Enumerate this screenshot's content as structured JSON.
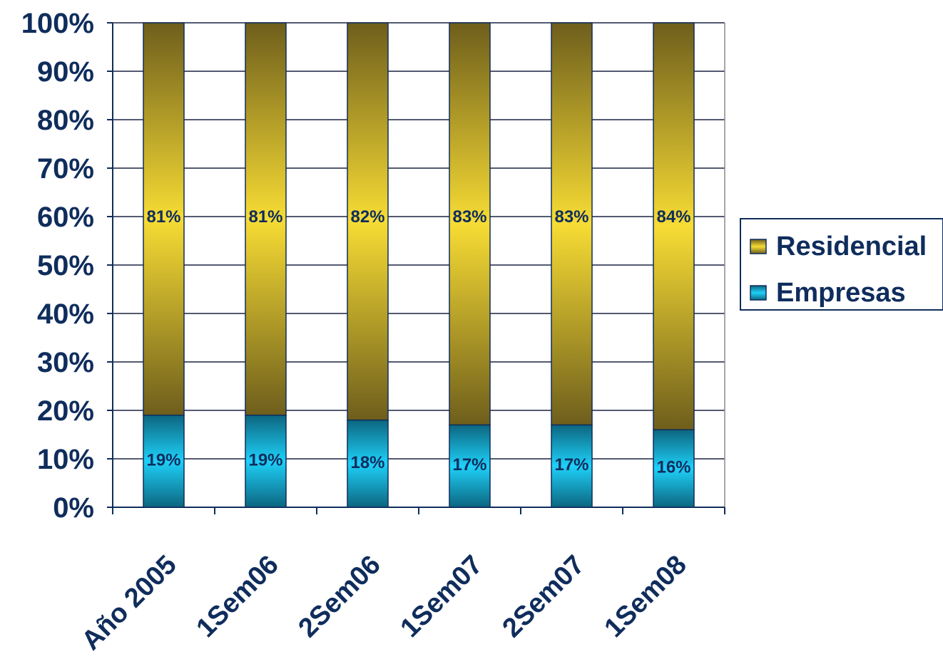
{
  "chart_data": {
    "type": "bar",
    "stacked": true,
    "percent_stacked": true,
    "categories": [
      "Año 2005",
      "1Sem06",
      "2Sem06",
      "1Sem07",
      "2Sem07",
      "1Sem08"
    ],
    "series": [
      {
        "name": "Empresas",
        "values": [
          19,
          19,
          18,
          17,
          17,
          16
        ],
        "labels": [
          "19%",
          "19%",
          "18%",
          "17%",
          "17%",
          "16%"
        ],
        "color": "#1ec8f0"
      },
      {
        "name": "Residencial",
        "values": [
          81,
          81,
          82,
          83,
          83,
          84
        ],
        "labels": [
          "81%",
          "81%",
          "82%",
          "83%",
          "83%",
          "84%"
        ],
        "color": "#f5d630"
      }
    ],
    "y_ticks": [
      "0%",
      "10%",
      "20%",
      "30%",
      "40%",
      "50%",
      "60%",
      "70%",
      "80%",
      "90%",
      "100%"
    ],
    "ylim": [
      0,
      100
    ],
    "grid": true,
    "legend_position": "right",
    "title": "",
    "xlabel": "",
    "ylabel": ""
  }
}
